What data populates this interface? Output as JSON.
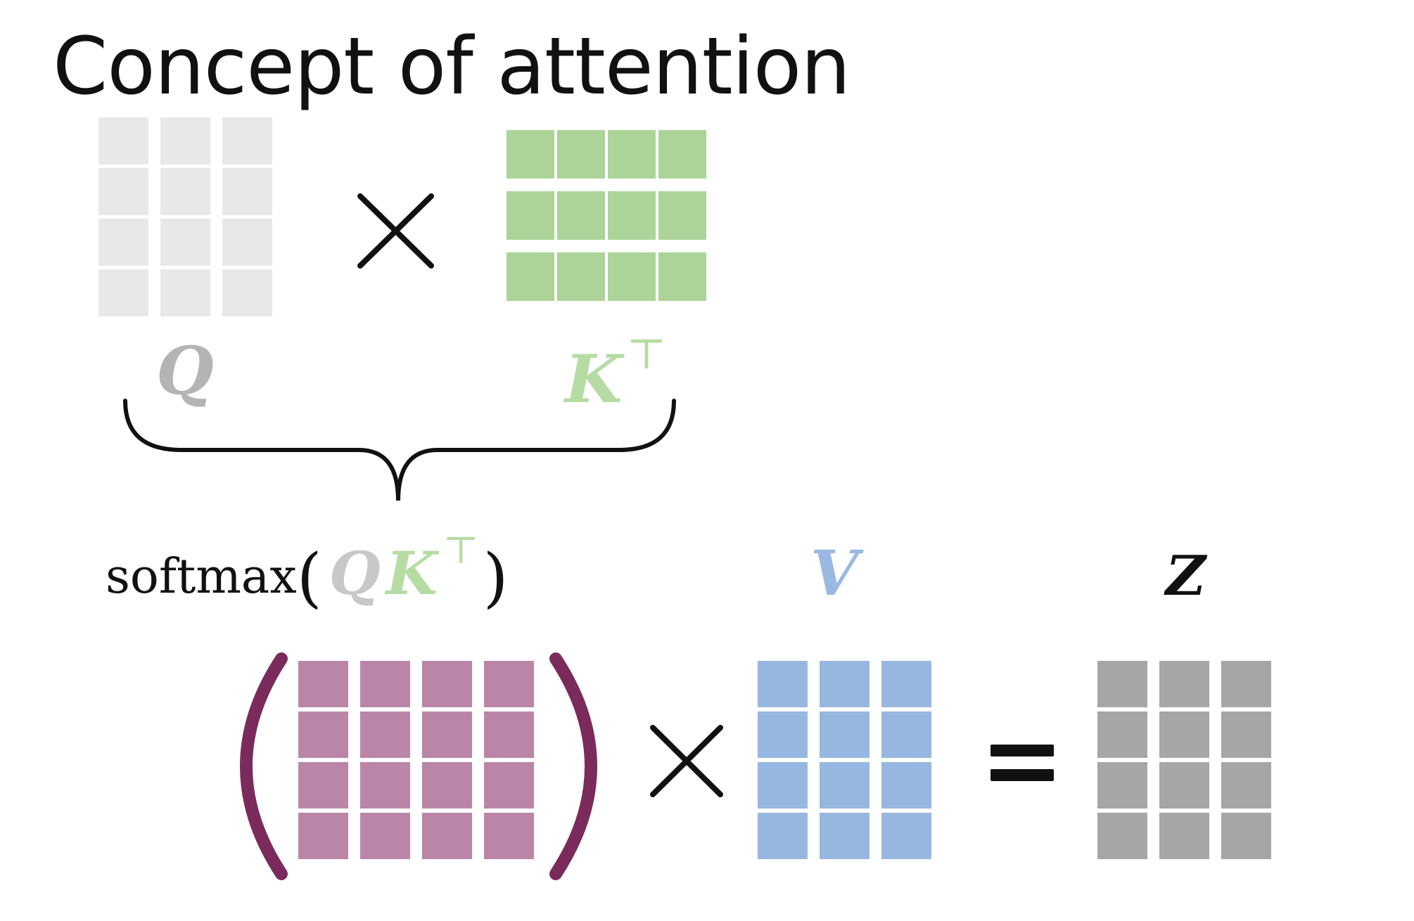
{
  "title": "Concept of attention",
  "labels": {
    "q": "Q",
    "kt_base": "K",
    "transpose_sup": "⊤",
    "softmax_fn": "softmax",
    "paren_open": "(",
    "paren_close": ")",
    "v": "V",
    "z": "Z"
  },
  "colors": {
    "q_matrix": "#e8e8e8",
    "q_label": "#b4b4b4",
    "kt_matrix": "#acd398",
    "kt_label": "#b6dca4",
    "softmax_matrix": "#bb85a8",
    "bracket": "#7a2b5c",
    "v_matrix": "#97b7e0",
    "v_label": "#9bb8e3",
    "z_matrix": "#a6a6a6",
    "operators": "#111111"
  },
  "matrices": {
    "q": {
      "rows": 4,
      "cols": 3
    },
    "kt": {
      "rows": 3,
      "cols": 4
    },
    "softmax": {
      "rows": 4,
      "cols": 4
    },
    "v": {
      "rows": 4,
      "cols": 3
    },
    "z": {
      "rows": 4,
      "cols": 3
    }
  },
  "icons": {
    "multiply_top": "multiply-icon",
    "multiply_bottom": "multiply-icon",
    "equals": "equals-icon",
    "brace": "curly-brace"
  }
}
